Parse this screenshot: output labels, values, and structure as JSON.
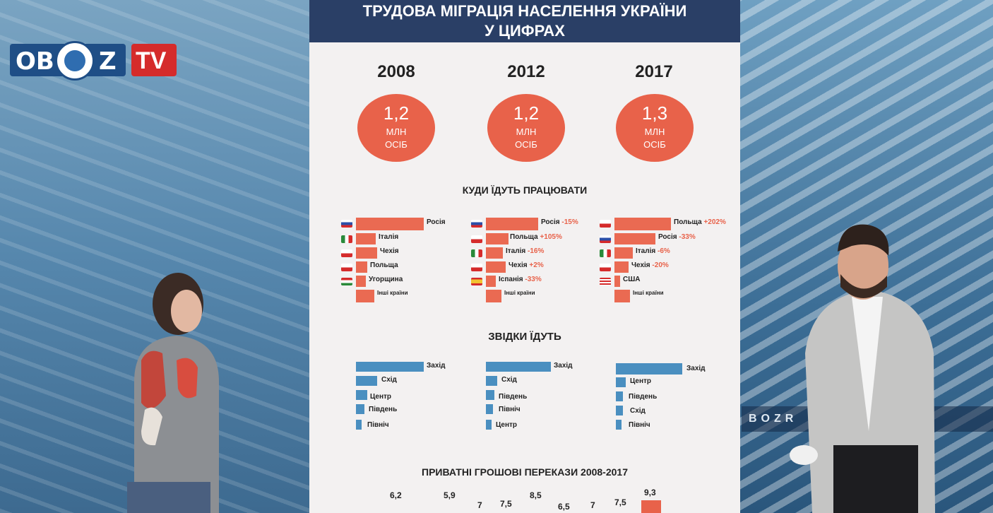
{
  "logo": {
    "text_left": "OB",
    "text_mid": "Z",
    "text_tv": "TV"
  },
  "studio_text": "BOZR",
  "board": {
    "title_line1": "ТРУДОВА МІГРАЦІЯ НАСЕЛЕННЯ УКРАЇНИ",
    "title_line2": "У ЦИФРАХ",
    "years": [
      {
        "year": "2008",
        "value": "1,2",
        "unit1": "МЛН",
        "unit2": "ОСІБ"
      },
      {
        "year": "2012",
        "value": "1,2",
        "unit1": "МЛН",
        "unit2": "ОСІБ"
      },
      {
        "year": "2017",
        "value": "1,3",
        "unit1": "МЛН",
        "unit2": "ОСІБ"
      }
    ],
    "section_where": "КУДИ ЇДУТЬ ПРАЦЮВАТИ",
    "section_from": "ЗВІДКИ ЇДУТЬ",
    "section_money": "ПРИВАТНІ ГРОШОВІ ПЕРЕКАЗИ 2008-2017",
    "dest2008": [
      "Росія",
      "Італія",
      "Чехія",
      "Польща",
      "Угорщина",
      "Інші країни"
    ],
    "dest2012": [
      "Росія",
      "Польща",
      "Італія",
      "Чехія",
      "Іспанія",
      "Інші країни"
    ],
    "dest2012_pct": [
      "-15%",
      "+105%",
      "-16%",
      "+2%",
      "-33%"
    ],
    "dest2017": [
      "Польща",
      "Росія",
      "Італія",
      "Чехія",
      "США",
      "Інші країни"
    ],
    "dest2017_pct": [
      "+202%",
      "-33%",
      "-6%",
      "-20%"
    ],
    "from2008": [
      "Захід",
      "Схід",
      "Центр",
      "Південь",
      "Північ"
    ],
    "from2012": [
      "Захід",
      "Схід",
      "Південь",
      "Північ",
      "Центр"
    ],
    "from2017": [
      "Захід",
      "Центр",
      "Південь",
      "Схід",
      "Північ"
    ],
    "remit_values": [
      "6,2",
      "5,9",
      "7",
      "7,5",
      "8,5",
      "6,5",
      "7",
      "7,5",
      "9,3"
    ]
  },
  "colors": {
    "title_bar": "#2a3f66",
    "accent_orange": "#e8624a",
    "bar_blue": "#4a8fc0"
  }
}
